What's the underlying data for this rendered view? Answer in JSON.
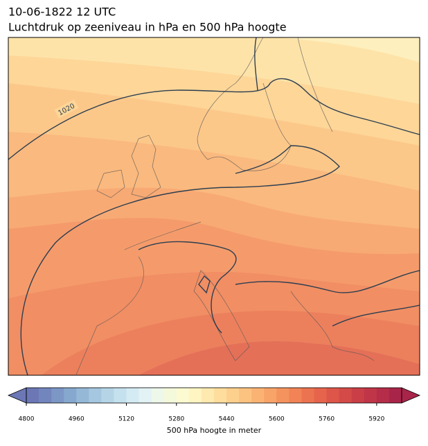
{
  "title": "10-06-1822 12 UTC",
  "subtitle": "Luchtdruk op zeeniveau in hPa en 500 hPa hoogte",
  "map": {
    "contour_label": "1020"
  },
  "colorbar": {
    "label": "500 hPa hoogte in meter",
    "lim": [
      4800,
      6000
    ],
    "ticks": [
      4800,
      4960,
      5120,
      5280,
      5440,
      5600,
      5760,
      5920
    ],
    "colors": [
      "#6c77b6",
      "#7385bd",
      "#7c96c5",
      "#87a8ce",
      "#95b8d7",
      "#a5c7df",
      "#b5d5e7",
      "#c5e1ee",
      "#d5ebf3",
      "#e3f2f4",
      "#edf7ea",
      "#f5f9dc",
      "#fbfad0",
      "#fef5c2",
      "#fee9ae",
      "#fedd9d",
      "#fdd08e",
      "#fcc280",
      "#fbb374",
      "#f8a368",
      "#f5935e",
      "#f18356",
      "#ec7350",
      "#e6644c",
      "#dd5649",
      "#d44a48",
      "#ca3f47",
      "#c03547",
      "#b52d48",
      "#a92449"
    ]
  }
}
